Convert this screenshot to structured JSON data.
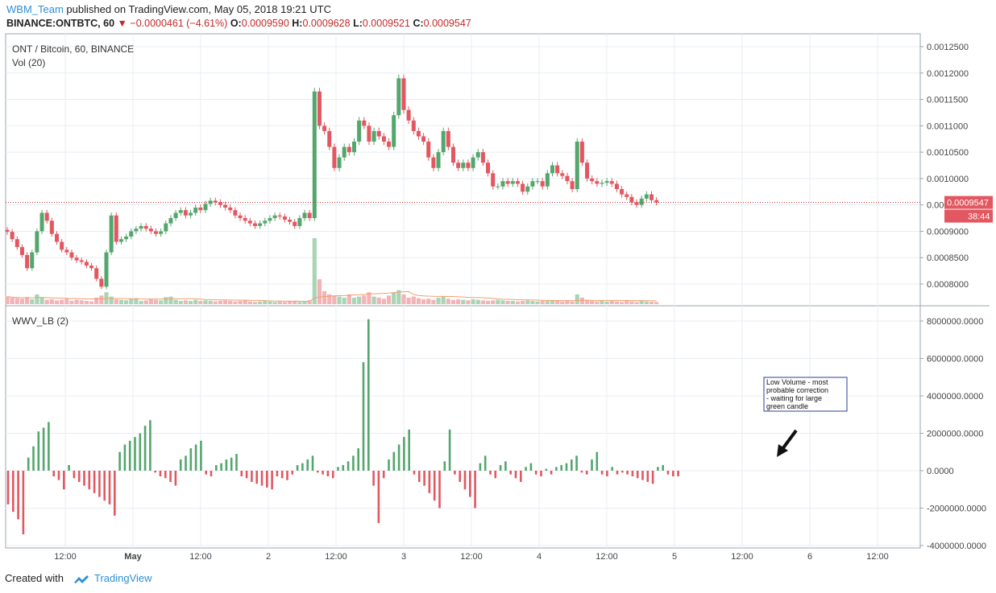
{
  "header": {
    "user": "WBM_Team",
    "published": " published on TradingView.com, May 05, 2018 19:21 UTC",
    "symbol": "BINANCE:ONTBTC, 60",
    "change": "−0.0000461 (−4.61%)",
    "o_label": "O:",
    "o": "0.0009590",
    "h_label": "H:",
    "h": "0.0009628",
    "l_label": "L:",
    "l": "0.0009521",
    "c_label": "C:",
    "c": "0.0009547"
  },
  "footer": {
    "created": "Created with",
    "brand": "TradingView"
  },
  "colors": {
    "up": "#53a66c",
    "down": "#e25760",
    "up_vol": "#a9d5b6",
    "down_vol": "#f3b3b7",
    "grid": "#e8eef3",
    "price_line": "#c62828",
    "ma": "#f0a070"
  },
  "chart_data": [
    {
      "type": "candlestick",
      "title": "ONT / Bitcoin, 60, BINANCE",
      "sub_legend": "Vol (20)",
      "ylim": [
        0.00075,
        0.00127
      ],
      "y_ticks": [
        "0.0012500",
        "0.0012000",
        "0.0011500",
        "0.0011000",
        "0.0010500",
        "0.0010000",
        "0.0009500",
        "0.0009000",
        "0.0008500",
        "0.0008000"
      ],
      "y_tick_values": [
        0.00125,
        0.0012,
        0.00115,
        0.0011,
        0.00105,
        0.001,
        0.00095,
        0.0009,
        0.00085,
        0.0008
      ],
      "x_ticks": [
        "12:00",
        "May",
        "12:00",
        "2",
        "12:00",
        "3",
        "12:00",
        "4",
        "12:00",
        "5",
        "12:00",
        "6",
        "12:00"
      ],
      "last_price_label": "0.0009547",
      "countdown_label": "38:44",
      "last_price": 0.0009547,
      "closes": [
        0.000899,
        0.000885,
        0.00087,
        0.000855,
        0.00083,
        0.00086,
        0.0009,
        0.000935,
        0.00092,
        0.000895,
        0.00088,
        0.000865,
        0.00086,
        0.00085,
        0.000845,
        0.000842,
        0.000835,
        0.00083,
        0.00081,
        0.000795,
        0.00086,
        0.00093,
        0.00088,
        0.000885,
        0.00089,
        0.0009,
        0.000905,
        0.00091,
        0.000905,
        0.0009,
        0.000895,
        0.0009,
        0.000915,
        0.000925,
        0.000935,
        0.00094,
        0.00093,
        0.000935,
        0.000945,
        0.00094,
        0.000952,
        0.000958,
        0.000955,
        0.00095,
        0.000945,
        0.00094,
        0.00093,
        0.000925,
        0.00092,
        0.000915,
        0.00091,
        0.000915,
        0.00092,
        0.000925,
        0.00093,
        0.000928,
        0.000922,
        0.000918,
        0.00091,
        0.000925,
        0.000935,
        0.000925,
        0.001165,
        0.0011,
        0.00109,
        0.00106,
        0.00102,
        0.00104,
        0.00106,
        0.00105,
        0.00107,
        0.00111,
        0.0011,
        0.00107,
        0.00109,
        0.00108,
        0.00107,
        0.00106,
        0.00112,
        0.00119,
        0.00113,
        0.00111,
        0.00109,
        0.00108,
        0.00107,
        0.00104,
        0.00102,
        0.00105,
        0.00109,
        0.00106,
        0.00103,
        0.00102,
        0.00103,
        0.00102,
        0.00104,
        0.00105,
        0.00103,
        0.00101,
        0.000985,
        0.000985,
        0.000995,
        0.00099,
        0.000995,
        0.00099,
        0.000975,
        0.000985,
        0.000995,
        0.000995,
        0.000985,
        0.00101,
        0.001025,
        0.00101,
        0.001005,
        0.000995,
        0.00098,
        0.00107,
        0.00103,
        0.001,
        0.000995,
        0.00099,
        0.000992,
        0.000995,
        0.00099,
        0.00098,
        0.00097,
        0.000965,
        0.000955,
        0.00095,
        0.000962,
        0.00097,
        0.000959,
        0.0009547
      ],
      "volumes": [
        70,
        60,
        55,
        50,
        65,
        45,
        90,
        60,
        40,
        45,
        35,
        40,
        50,
        30,
        40,
        35,
        30,
        25,
        60,
        80,
        110,
        70,
        45,
        40,
        35,
        50,
        55,
        30,
        35,
        45,
        40,
        35,
        65,
        70,
        40,
        30,
        35,
        30,
        40,
        30,
        35,
        30,
        25,
        30,
        35,
        30,
        25,
        30,
        35,
        25,
        20,
        25,
        30,
        25,
        20,
        25,
        20,
        25,
        30,
        20,
        25,
        35,
        610,
        230,
        120,
        90,
        80,
        70,
        60,
        90,
        60,
        70,
        80,
        110,
        70,
        60,
        50,
        80,
        110,
        130,
        90,
        60,
        70,
        55,
        45,
        50,
        40,
        60,
        70,
        50,
        40,
        45,
        40,
        35,
        45,
        40,
        35,
        30,
        35,
        40,
        35,
        30,
        30,
        25,
        30,
        35,
        30,
        25,
        30,
        30,
        35,
        30,
        25,
        30,
        25,
        90,
        60,
        40,
        30,
        25,
        30,
        25,
        30,
        25,
        20,
        30,
        25,
        20,
        30,
        25,
        22,
        20
      ]
    },
    {
      "type": "bar",
      "title": "WWV_LB (2)",
      "ylim": [
        -4000000,
        8300000
      ],
      "y_ticks": [
        "8000000.0000",
        "6000000.0000",
        "4000000.0000",
        "2000000.0000",
        "0.0000",
        "-2000000.0000",
        "-4000000.0000"
      ],
      "y_tick_values": [
        8000000,
        6000000,
        4000000,
        2000000,
        0,
        -2000000,
        -4000000
      ],
      "values": [
        -1800000,
        -2200000,
        -2600000,
        -3400000,
        700000,
        1300000,
        2100000,
        2300000,
        2600000,
        -300000,
        -500000,
        -1000000,
        300000,
        -400000,
        -600000,
        -800000,
        -1000000,
        -1200000,
        -1400000,
        -1600000,
        -1800000,
        -2400000,
        1000000,
        1400000,
        1600000,
        1800000,
        2000000,
        2400000,
        2700000,
        -100000,
        -300000,
        -400000,
        -600000,
        -800000,
        600000,
        800000,
        1200000,
        1400000,
        1600000,
        -200000,
        -300000,
        300000,
        400000,
        600000,
        700000,
        900000,
        -300000,
        -400000,
        -600000,
        -700000,
        -800000,
        -900000,
        -1000000,
        -300000,
        -400000,
        -500000,
        -200000,
        300000,
        400000,
        600000,
        800000,
        -100000,
        -200000,
        -300000,
        -400000,
        200000,
        300000,
        500000,
        800000,
        1200000,
        5800000,
        8100000,
        -800000,
        -2800000,
        -400000,
        600000,
        1000000,
        1400000,
        1800000,
        2200000,
        -200000,
        -600000,
        -800000,
        -1200000,
        -1600000,
        -2000000,
        500000,
        2200000,
        -200000,
        -600000,
        -1000000,
        -1400000,
        -2000000,
        400000,
        800000,
        -200000,
        -400000,
        300000,
        500000,
        -200000,
        -400000,
        -600000,
        200000,
        400000,
        -200000,
        -300000,
        100000,
        -200000,
        200000,
        300000,
        400000,
        600000,
        800000,
        -100000,
        -200000,
        600000,
        1000000,
        -200000,
        -300000,
        200000,
        -200000,
        -100000,
        -200000,
        -300000,
        -400000,
        -500000,
        -600000,
        -700000,
        200000,
        300000,
        -200000,
        -300000,
        -300000
      ],
      "annotation": [
        "Low Volume - most",
        "probable correction",
        "- waiting for large",
        "green candle"
      ]
    }
  ]
}
